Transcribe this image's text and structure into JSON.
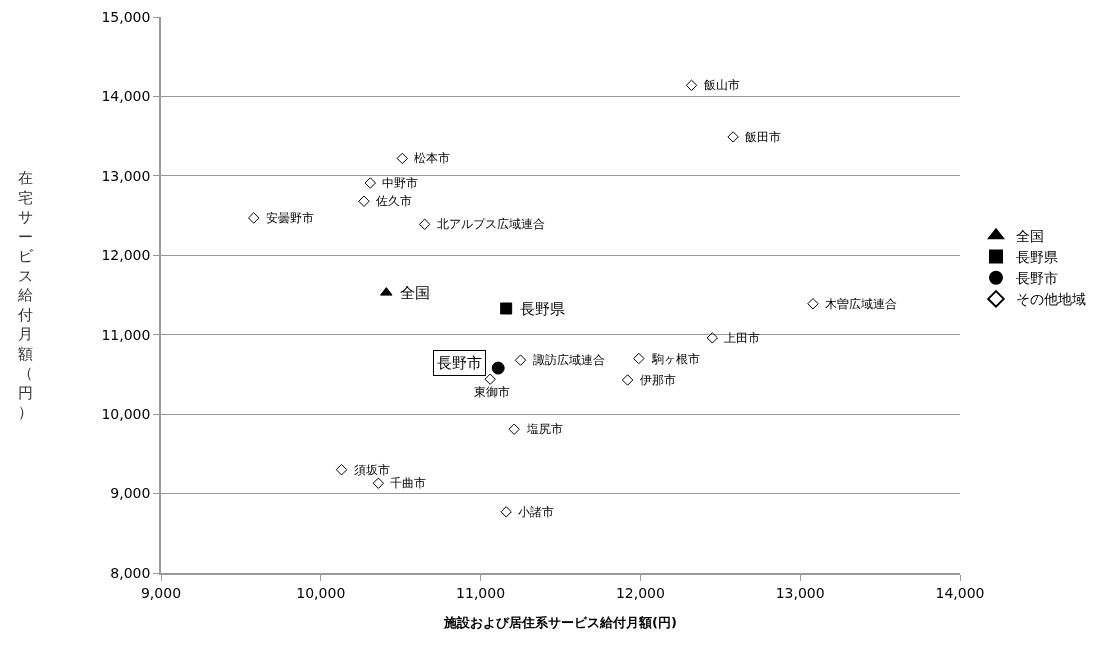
{
  "chart_data": {
    "type": "scatter",
    "xlabel": "施設および居住系サービス給付月額(円)",
    "ylabel": "在宅サービス給付月額（円）",
    "xlim": [
      9000,
      14000
    ],
    "xticks": [
      {
        "value": 9000,
        "label": "9,000"
      },
      {
        "value": 10000,
        "label": "10,000"
      },
      {
        "value": 11000,
        "label": "11,000"
      },
      {
        "value": 12000,
        "label": "12,000"
      },
      {
        "value": 13000,
        "label": "13,000"
      },
      {
        "value": 14000,
        "label": "14,000"
      }
    ],
    "ylim": [
      8000,
      15000
    ],
    "yticks": [
      {
        "value": 8000,
        "label": "8,000"
      },
      {
        "value": 9000,
        "label": "9,000"
      },
      {
        "value": 10000,
        "label": "10,000"
      },
      {
        "value": 11000,
        "label": "11,000"
      },
      {
        "value": 12000,
        "label": "12,000"
      },
      {
        "value": 13000,
        "label": "13,000"
      },
      {
        "value": 14000,
        "label": "14,000"
      },
      {
        "value": 15000,
        "label": "15,000"
      }
    ],
    "grid": "y",
    "legend": "right",
    "series": [
      {
        "name": "全国",
        "color": "#000000",
        "marker": "triangle",
        "x": [
          10410
        ],
        "values": [
          11530
        ]
      },
      {
        "name": "長野県",
        "color": "#000000",
        "marker": "square",
        "x": [
          11160
        ],
        "values": [
          11330
        ]
      },
      {
        "name": "長野市",
        "color": "#000000",
        "marker": "circle",
        "x": [
          11110
        ],
        "values": [
          10580
        ]
      },
      {
        "name": "その他地域",
        "color": "#000000",
        "marker": "diamond",
        "x": [
          12320,
          12580,
          10510,
          10310,
          10270,
          9580,
          10650,
          13080,
          12450,
          11250,
          11990,
          11920,
          11060,
          11210,
          10130,
          10360,
          11160
        ],
        "values": [
          14140,
          13490,
          13220,
          12910,
          12680,
          12470,
          12390,
          11390,
          10960,
          10680,
          10700,
          10430,
          10440,
          9810,
          9300,
          9130,
          8770
        ]
      }
    ],
    "annotations": [
      {
        "text": "全国",
        "x": 10410,
        "y": 11530
      },
      {
        "text": "長野県",
        "x": 11160,
        "y": 11330
      },
      {
        "text": "長野市",
        "x": 11110,
        "y": 10580
      },
      {
        "text": "飯山市",
        "x": 12320,
        "y": 14140
      },
      {
        "text": "飯田市",
        "x": 12580,
        "y": 13490
      },
      {
        "text": "松本市",
        "x": 10510,
        "y": 13220
      },
      {
        "text": "中野市",
        "x": 10310,
        "y": 12910
      },
      {
        "text": "佐久市",
        "x": 10270,
        "y": 12680
      },
      {
        "text": "安曇野市",
        "x": 9580,
        "y": 12470
      },
      {
        "text": "北アルプス広域連合",
        "x": 10650,
        "y": 12390
      },
      {
        "text": "木曽広域連合",
        "x": 13080,
        "y": 11390
      },
      {
        "text": "上田市",
        "x": 12450,
        "y": 10960
      },
      {
        "text": "諏訪広域連合",
        "x": 11250,
        "y": 10680
      },
      {
        "text": "駒ヶ根市",
        "x": 11990,
        "y": 10700
      },
      {
        "text": "伊那市",
        "x": 11920,
        "y": 10430
      },
      {
        "text": "東御市",
        "x": 11060,
        "y": 10440
      },
      {
        "text": "塩尻市",
        "x": 11210,
        "y": 9810
      },
      {
        "text": "須坂市",
        "x": 10130,
        "y": 9300
      },
      {
        "text": "千曲市",
        "x": 10360,
        "y": 9130
      },
      {
        "text": "小諸市",
        "x": 11160,
        "y": 8770
      }
    ]
  }
}
